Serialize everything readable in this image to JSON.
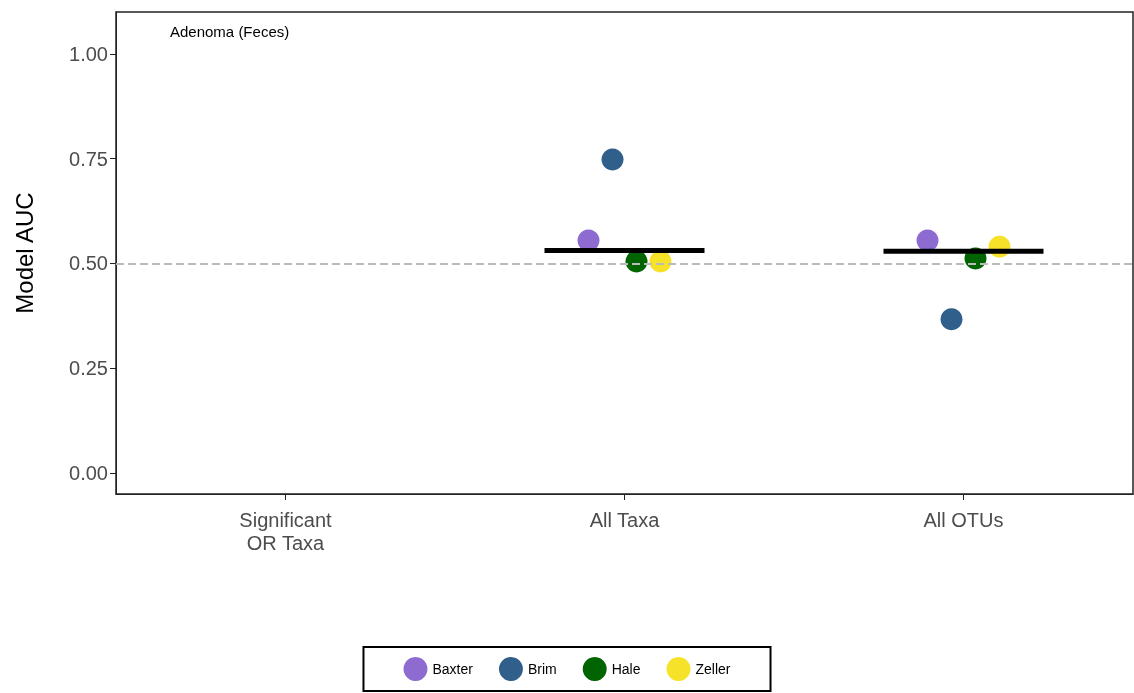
{
  "chart_data": {
    "type": "scatter",
    "ylabel": "Model AUC",
    "annotations": [
      "Adenoma (Feces)"
    ],
    "categories": [
      "Significant\nOR Taxa",
      "All Taxa",
      "All OTUs"
    ],
    "series": [
      {
        "name": "Baxter",
        "color": "#8e6bd0",
        "values": [
          null,
          0.555,
          0.555
        ]
      },
      {
        "name": "Brim",
        "color": "#2f5f8a",
        "values": [
          null,
          0.748,
          0.367
        ]
      },
      {
        "name": "Hale",
        "color": "#006400",
        "values": [
          null,
          0.505,
          0.512
        ]
      },
      {
        "name": "Zeller",
        "color": "#f7e22a",
        "values": [
          null,
          0.505,
          0.54
        ]
      },
      {
        "type": "box",
        "color": "#000000",
        "boxes": [
          null,
          {
            "low": 0.531,
            "q1": 0.531,
            "median": 0.531,
            "q3": 0.531,
            "high": 0.531
          },
          {
            "low": 0.529,
            "q1": 0.529,
            "median": 0.529,
            "q3": 0.529,
            "high": 0.529
          }
        ]
      }
    ],
    "ylim": [
      -0.05,
      1.1
    ],
    "yticks": [
      {
        "value": 0,
        "label": "0.00"
      },
      {
        "value": 0.25,
        "label": "0.25"
      },
      {
        "value": 0.5,
        "label": "0.50"
      },
      {
        "value": 0.75,
        "label": "0.75"
      },
      {
        "value": 1,
        "label": "1.00"
      }
    ],
    "ref_lines": [
      {
        "axis": "y",
        "value": 0.5,
        "color": "#bbbbbb",
        "line_style": "dashed"
      }
    ],
    "grid": false,
    "legend": "bottom",
    "marker": "circle"
  }
}
